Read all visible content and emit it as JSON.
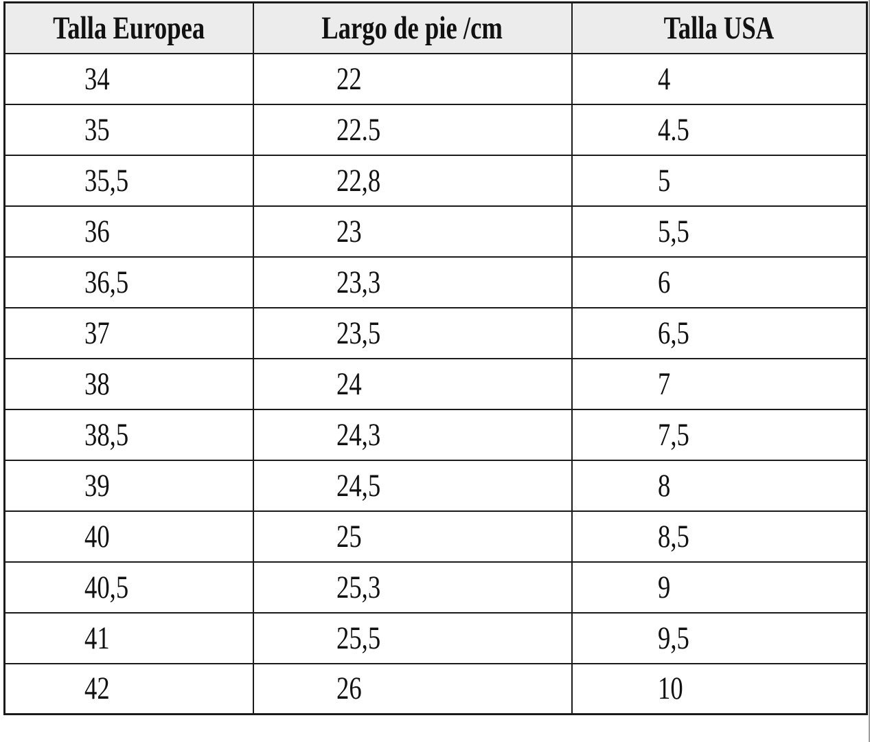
{
  "table": {
    "columns": [
      {
        "key": "eu",
        "label": "Talla Europea"
      },
      {
        "key": "cm",
        "label": "Largo de pie /cm"
      },
      {
        "key": "us",
        "label": "Talla USA"
      }
    ],
    "rows": [
      [
        "34",
        "22",
        "4"
      ],
      [
        "35",
        "22.5",
        "4.5"
      ],
      [
        "35,5",
        "22,8",
        "5"
      ],
      [
        "36",
        "23",
        "5,5"
      ],
      [
        "36,5",
        "23,3",
        "6"
      ],
      [
        "37",
        "23,5",
        "6,5"
      ],
      [
        "38",
        "24",
        "7"
      ],
      [
        "38,5",
        "24,3",
        "7,5"
      ],
      [
        "39",
        "24,5",
        "8"
      ],
      [
        "40",
        "25",
        "8,5"
      ],
      [
        "40,5",
        "25,3",
        "9"
      ],
      [
        "41",
        "25,5",
        "9,5"
      ],
      [
        "42",
        "26",
        "10"
      ]
    ]
  },
  "colors": {
    "header_bg": "#ececec",
    "border": "#1a1a1a",
    "text": "#111111",
    "page_edge": "#9b9b9b"
  }
}
